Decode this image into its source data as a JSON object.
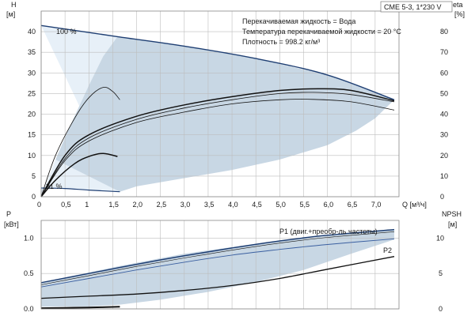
{
  "colors": {
    "band_fill": "#c8d7e4",
    "band_light": "#e7f0f8",
    "envelope_line": "#1f3f73",
    "curve_dark": "#111111",
    "curve_blue": "#3a5fa0",
    "label_blue": "#1f3f9a",
    "grid": "#bdbdbd"
  },
  "model_label": "CME 5-3, 1*230 V",
  "info_lines": [
    "Перекачиваемая жидкость = Вода",
    "Температура перекачиваемой жидкости = 20 °C",
    "Плотность = 998.2 кг/м³"
  ],
  "chart_data": [
    {
      "type": "line",
      "name": "H-Q",
      "xlabel": "Q [м³/ч]",
      "left_axis": {
        "title": [
          "H",
          "[м]"
        ],
        "ticks": [
          "0",
          "5",
          "10",
          "15",
          "20",
          "25",
          "30",
          "35",
          "40"
        ],
        "range": [
          0,
          45
        ]
      },
      "right_axis": {
        "title": [
          "eta",
          "[%]"
        ],
        "ticks": [
          "0",
          "10",
          "20",
          "30",
          "40",
          "50",
          "60",
          "70",
          "80"
        ],
        "range": [
          0,
          90
        ]
      },
      "x_ticks": [
        "0",
        "0,5",
        "1",
        "1,5",
        "2,0",
        "2,5",
        "3,0",
        "3,5",
        "4,0",
        "4,5",
        "5,0",
        "5,5",
        "6,0",
        "6,5",
        "7,0"
      ],
      "xlim": [
        0,
        7.5
      ],
      "grid": true,
      "annotations": {
        "max_speed": "100 %",
        "min_speed": "21 %"
      },
      "operating_band": {
        "top": [
          [
            0,
            41.5
          ],
          [
            1.6,
            38.8
          ],
          [
            3,
            36.5
          ],
          [
            4.5,
            33.5
          ],
          [
            6,
            29.5
          ],
          [
            7.4,
            23.5
          ]
        ],
        "right": [
          [
            7.4,
            23.5
          ],
          [
            7,
            19
          ],
          [
            6.6,
            16
          ],
          [
            6,
            12.5
          ],
          [
            5,
            9
          ],
          [
            4,
            6.5
          ],
          [
            3,
            4.5
          ],
          [
            2,
            2.5
          ],
          [
            1.65,
            1.2
          ]
        ],
        "bottom": [
          [
            1.65,
            1.2
          ],
          [
            1,
            1.6
          ],
          [
            0.5,
            2
          ],
          [
            0,
            2.1
          ]
        ],
        "inner_left": [
          [
            0,
            0
          ],
          [
            0.3,
            9
          ],
          [
            0.6,
            17
          ],
          [
            1,
            27
          ],
          [
            1.3,
            34
          ],
          [
            1.6,
            38.8
          ]
        ]
      },
      "series": [
        {
          "role": "head_max",
          "axis": "left",
          "points": [
            [
              0,
              41.5
            ],
            [
              1.6,
              38.8
            ],
            [
              3,
              36.5
            ],
            [
              4.5,
              33.5
            ],
            [
              6,
              29.5
            ],
            [
              7.4,
              23.5
            ]
          ]
        },
        {
          "role": "head_min",
          "axis": "left",
          "points": [
            [
              0,
              2.1
            ],
            [
              0.5,
              2.0
            ],
            [
              1,
              1.6
            ],
            [
              1.65,
              1.2
            ]
          ]
        },
        {
          "role": "eta_pump_total",
          "axis": "right",
          "points": [
            [
              0,
              0
            ],
            [
              0.5,
              20
            ],
            [
              1,
              30
            ],
            [
              2,
              39
            ],
            [
              3,
              44.5
            ],
            [
              4,
              48.5
            ],
            [
              5,
              51.5
            ],
            [
              5.8,
              52.3
            ],
            [
              6.5,
              51.5
            ],
            [
              7.4,
              46.5
            ]
          ]
        },
        {
          "role": "eta_mid",
          "axis": "right",
          "points": [
            [
              0,
              0
            ],
            [
              0.5,
              17.5
            ],
            [
              1,
              27
            ],
            [
              2,
              36
            ],
            [
              3,
              41
            ],
            [
              4,
              45
            ],
            [
              5,
              47
            ],
            [
              5.7,
              47.2
            ],
            [
              6.5,
              46
            ],
            [
              7.4,
              42
            ]
          ]
        },
        {
          "role": "eta_part",
          "axis": "right",
          "points": [
            [
              0,
              0
            ],
            [
              0.3,
              8
            ],
            [
              0.7,
              16
            ],
            [
              1,
              19.5
            ],
            [
              1.3,
              21
            ],
            [
              1.6,
              19.5
            ]
          ]
        },
        {
          "role": "eta_part_upper",
          "axis": "right",
          "points": [
            [
              0,
              0
            ],
            [
              0.3,
              20
            ],
            [
              0.7,
              38
            ],
            [
              1,
              48
            ],
            [
              1.3,
              53
            ],
            [
              1.5,
              51
            ],
            [
              1.65,
              47
            ]
          ]
        },
        {
          "role": "eta_total_light",
          "axis": "right",
          "points": [
            [
              0,
              0
            ],
            [
              0.5,
              18.5
            ],
            [
              1,
              28.5
            ],
            [
              2,
              37.5
            ],
            [
              3,
              43
            ],
            [
              4,
              47
            ],
            [
              5,
              50
            ],
            [
              5.7,
              50.6
            ],
            [
              6.5,
              49.5
            ],
            [
              7.4,
              46
            ]
          ]
        }
      ]
    },
    {
      "type": "line",
      "name": "P-Q",
      "left_axis": {
        "title": [
          "P",
          "[кВт]"
        ],
        "ticks": [
          "0.0",
          "0.5",
          "1.0"
        ],
        "range": [
          0,
          1.25
        ]
      },
      "right_axis": {
        "title": [
          "NPSH",
          "[м]"
        ],
        "ticks": [
          "0",
          "5",
          "10"
        ],
        "range": [
          0,
          12.5
        ]
      },
      "xlim": [
        0,
        7.5
      ],
      "grid": true,
      "operating_band": {
        "top": [
          [
            0,
            0.37
          ],
          [
            1.6,
            0.6
          ],
          [
            3,
            0.78
          ],
          [
            4.5,
            0.92
          ],
          [
            6,
            1.03
          ],
          [
            7.4,
            1.12
          ]
        ],
        "bottom": [
          [
            7.4,
            0.98
          ],
          [
            6.5,
            0.78
          ],
          [
            5.5,
            0.55
          ],
          [
            4.5,
            0.38
          ],
          [
            3.5,
            0.24
          ],
          [
            2.5,
            0.13
          ],
          [
            1.65,
            0.06
          ],
          [
            1,
            0.035
          ],
          [
            0,
            0.03
          ]
        ]
      },
      "series": [
        {
          "name": "P1 (двиг.+преобр-ль частоты)",
          "axis": "left",
          "points": [
            [
              0,
              0.37
            ],
            [
              1,
              0.5
            ],
            [
              2,
              0.63
            ],
            [
              3,
              0.75
            ],
            [
              4,
              0.86
            ],
            [
              5,
              0.96
            ],
            [
              6,
              1.04
            ],
            [
              7.4,
              1.12
            ]
          ]
        },
        {
          "name": "P2",
          "axis": "left",
          "points": [
            [
              0,
              0.31
            ],
            [
              1,
              0.43
            ],
            [
              2,
              0.55
            ],
            [
              3,
              0.66
            ],
            [
              4,
              0.76
            ],
            [
              5,
              0.84
            ],
            [
              6,
              0.91
            ],
            [
              7.4,
              0.99
            ]
          ]
        },
        {
          "role": "npsh",
          "axis": "right",
          "points": [
            [
              0,
              1.5
            ],
            [
              1,
              1.8
            ],
            [
              2,
              2.1
            ],
            [
              3,
              2.6
            ],
            [
              4,
              3.3
            ],
            [
              5,
              4.3
            ],
            [
              6,
              5.6
            ],
            [
              7.4,
              7.4
            ]
          ]
        },
        {
          "role": "power_min",
          "axis": "left",
          "points": [
            [
              0,
              0.01
            ],
            [
              0.5,
              0.015
            ],
            [
              1,
              0.02
            ],
            [
              1.65,
              0.03
            ]
          ]
        }
      ]
    }
  ]
}
